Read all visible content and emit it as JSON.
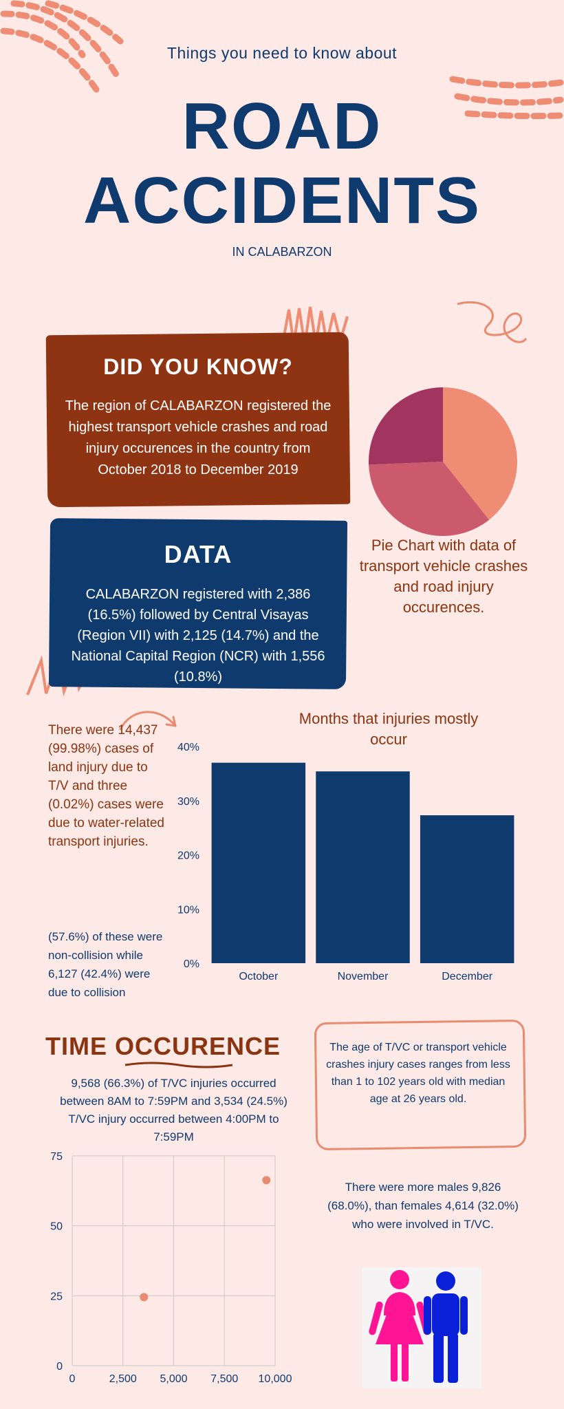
{
  "header": {
    "subtitle": "Things you need to know about",
    "title_line1": "ROAD",
    "title_line2": "ACCIDENTS",
    "region": "IN CALABARZON"
  },
  "did_you_know": {
    "title": "DID YOU KNOW?",
    "body": "The region of CALABARZON registered the highest transport vehicle crashes and road injury occurences in the country from October 2018 to December 2019"
  },
  "data_section": {
    "title": "DATA",
    "body": "CALABARZON registered with 2,386 (16.5%) followed by Central Visayas (Region VII) with 2,125 (14.7%) and the National Capital Region (NCR) with 1,556 (10.8%)"
  },
  "pie_caption": "Pie Chart with data of transport vehicle crashes and road injury occurences.",
  "injury_note": "There were 14,437 (99.98%) cases of land injury due to T/V and three (0.02%) cases were due to water-related transport injuries.",
  "collision_note": "(57.6%) of these were non-collision while 6,127 (42.4%) were due to collision",
  "bar_title": "Months that injuries mostly occur",
  "time_section": {
    "title": "TIME OCCURENCE",
    "body": "9,568 (66.3%) of T/VC injuries occurred between 8AM to 7:59PM and 3,534 (24.5%) T/VC injury occurred between 4:00PM to 7:59PM"
  },
  "age_note": "The age of T/VC or transport vehicle crashes injury cases ranges from less than 1 to 102 years old with median age at 26 years old.",
  "gender_note": "There were more males 9,826 (68.0%), than females 4,614 (32.0%) who were involved in T/VC.",
  "icons": [
    "female-icon",
    "male-icon",
    "curly-arrow-icon",
    "squiggle-icon",
    "dash-decoration-icon"
  ],
  "colors": {
    "background": "#fde9e6",
    "navy": "#0f3a6e",
    "rust": "#8f3412",
    "salmon": "#e98b70",
    "female": "#ff1493",
    "male": "#0a1fd8"
  },
  "chart_data": [
    {
      "type": "pie",
      "title": "",
      "values": [
        2386,
        2125,
        1556
      ],
      "colors": [
        "#ee8c74",
        "#cb5a6d",
        "#a2355f"
      ]
    },
    {
      "type": "bar",
      "categories": [
        "October",
        "November",
        "December"
      ],
      "values": [
        37,
        35.4,
        27.3
      ],
      "yticks": [
        "0%",
        "10%",
        "20%",
        "30%",
        "40%"
      ],
      "ylim": [
        0,
        40
      ],
      "color": "#0f3a6e",
      "grid": false
    },
    {
      "type": "scatter",
      "points": [
        {
          "x": 3534,
          "y": 24.5
        },
        {
          "x": 9568,
          "y": 66.3
        }
      ],
      "xticks": [
        "0",
        "2,500",
        "5,000",
        "7,500",
        "10,000"
      ],
      "yticks": [
        "0",
        "25",
        "50",
        "75"
      ],
      "xlim": [
        0,
        10000
      ],
      "ylim": [
        0,
        75
      ],
      "grid": true,
      "color": "#e98b70"
    }
  ]
}
